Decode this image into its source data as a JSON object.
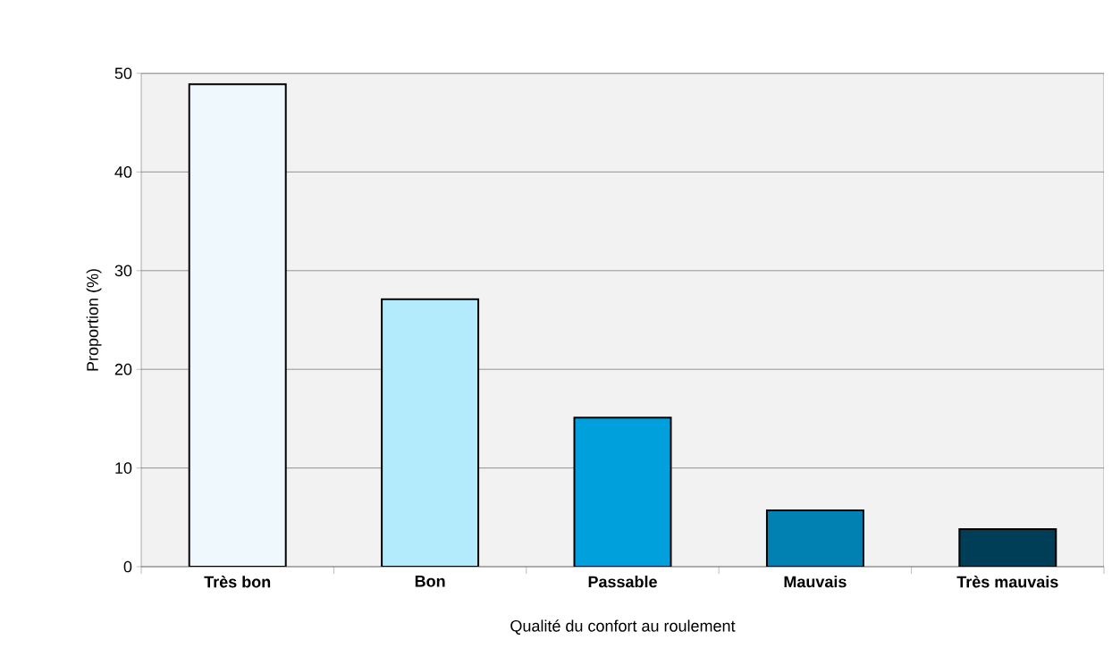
{
  "chart_data": {
    "type": "bar",
    "xlabel": "Qualité du confort au roulement",
    "ylabel": "Proportion  (%)",
    "categories": [
      "Très bon",
      "Bon",
      "Passable",
      "Mauvais",
      "Très mauvais"
    ],
    "values": [
      48.9,
      27.1,
      15.1,
      5.7,
      3.8
    ],
    "colors": [
      "#eff9fd",
      "#b3eafc",
      "#00a0dc",
      "#0081b1",
      "#003d57"
    ],
    "ylim": [
      0,
      50
    ],
    "yticks": [
      0,
      10,
      20,
      30,
      40,
      50
    ],
    "grid": "y"
  }
}
